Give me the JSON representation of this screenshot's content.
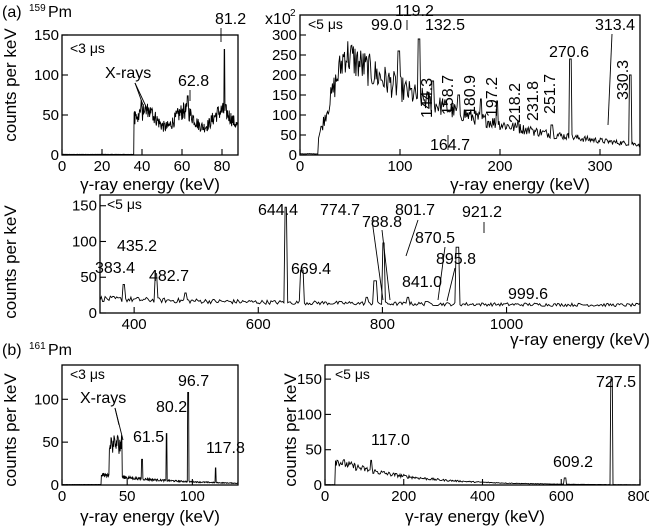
{
  "figure": {
    "label_a": "(a)",
    "nucleus_a_mass": "159",
    "nucleus_a_symbol": "Pm",
    "label_b": "(b)",
    "nucleus_b_mass": "161",
    "nucleus_b_symbol": "Pm"
  },
  "chart_data": [
    {
      "id": "a1",
      "type": "line",
      "gate": "<3 μs",
      "xlabel": "γ-ray energy (keV)",
      "ylabel": "counts per keV",
      "xlim": [
        0,
        88
      ],
      "ylim": [
        0,
        150
      ],
      "xticks": [
        0,
        20,
        40,
        60,
        80
      ],
      "yticks": [
        0,
        50,
        100,
        150
      ],
      "peaks": [
        {
          "label": "X-rays",
          "x": 40,
          "y": 55
        },
        {
          "label": "62.8",
          "x": 62.8,
          "y": 74
        },
        {
          "label": "81.2",
          "x": 81.2,
          "y": 132
        }
      ]
    },
    {
      "id": "a2",
      "type": "line",
      "gate": "<5 μs",
      "xlabel": "γ-ray energy (keV)",
      "ylabel": "",
      "scale_note": "x10",
      "scale_note_exp": "2",
      "xlim": [
        0,
        340
      ],
      "ylim": [
        0,
        350
      ],
      "xticks": [
        0,
        100,
        200,
        300
      ],
      "yticks": [
        0,
        50,
        100,
        150,
        200,
        250,
        300
      ],
      "peaks": [
        {
          "label": "99.0",
          "x": 99,
          "y": 260
        },
        {
          "label": "119.2",
          "x": 119.2,
          "y": 290
        },
        {
          "label": "132.5",
          "x": 132.5,
          "y": 185
        },
        {
          "label": "144.3",
          "x": 144.3,
          "y": 120
        },
        {
          "label": "158.7",
          "x": 158.7,
          "y": 150
        },
        {
          "label": "164.7",
          "x": 164.7,
          "y": 60
        },
        {
          "label": "180.9",
          "x": 180.9,
          "y": 140
        },
        {
          "label": "197.2",
          "x": 197.2,
          "y": 135
        },
        {
          "label": "218.2",
          "x": 218.2,
          "y": 85
        },
        {
          "label": "231.8",
          "x": 231.8,
          "y": 65
        },
        {
          "label": "251.7",
          "x": 251.7,
          "y": 75
        },
        {
          "label": "270.6",
          "x": 270.6,
          "y": 240
        },
        {
          "label": "313.4",
          "x": 313.4,
          "y": 25
        },
        {
          "label": "330.3",
          "x": 330.3,
          "y": 200
        }
      ]
    },
    {
      "id": "a3",
      "type": "line",
      "gate": "<5 μs",
      "xlabel": "γ-ray energy (keV)",
      "ylabel": "counts per keV",
      "xlim": [
        345,
        1215
      ],
      "ylim": [
        0,
        165
      ],
      "xticks": [
        400,
        600,
        800,
        1000
      ],
      "yticks": [
        0,
        50,
        100,
        150
      ],
      "peaks": [
        {
          "label": "383.4",
          "x": 383.4,
          "y": 40
        },
        {
          "label": "435.2",
          "x": 435.2,
          "y": 55
        },
        {
          "label": "482.7",
          "x": 482.7,
          "y": 28
        },
        {
          "label": "644.4",
          "x": 644.4,
          "y": 148
        },
        {
          "label": "669.4",
          "x": 669.4,
          "y": 60
        },
        {
          "label": "774.7",
          "x": 774.7,
          "y": 22
        },
        {
          "label": "788.8",
          "x": 788.8,
          "y": 45
        },
        {
          "label": "801.7",
          "x": 801.7,
          "y": 98
        },
        {
          "label": "841.0",
          "x": 841.0,
          "y": 22
        },
        {
          "label": "870.5",
          "x": 870.5,
          "y": 16
        },
        {
          "label": "895.8",
          "x": 895.8,
          "y": 10
        },
        {
          "label": "921.2",
          "x": 921.2,
          "y": 92
        },
        {
          "label": "999.6",
          "x": 999.6,
          "y": 8
        }
      ]
    },
    {
      "id": "b1",
      "type": "line",
      "gate": "<3 μs",
      "xlabel": "γ-ray energy (keV)",
      "ylabel": "counts per keV",
      "xlim": [
        0,
        135
      ],
      "ylim": [
        0,
        140
      ],
      "xticks": [
        0,
        50,
        100
      ],
      "yticks": [
        0,
        50,
        100
      ],
      "peaks": [
        {
          "label": "X-rays",
          "x": 40,
          "y": 60
        },
        {
          "label": "61.5",
          "x": 61.5,
          "y": 30
        },
        {
          "label": "80.2",
          "x": 80.2,
          "y": 60
        },
        {
          "label": "96.7",
          "x": 96.7,
          "y": 108
        },
        {
          "label": "117.8",
          "x": 117.8,
          "y": 20
        }
      ]
    },
    {
      "id": "b2",
      "type": "line",
      "gate": "<5 μs",
      "xlabel": "γ-ray energy (keV)",
      "ylabel": "counts per keV",
      "xlim": [
        0,
        800
      ],
      "ylim": [
        0,
        170
      ],
      "xticks": [
        0,
        200,
        400,
        600,
        800
      ],
      "yticks": [
        0,
        50,
        100,
        150
      ],
      "peaks": [
        {
          "label": "117.0",
          "x": 117.0,
          "y": 35
        },
        {
          "label": "609.2",
          "x": 609.2,
          "y": 10
        },
        {
          "label": "727.5",
          "x": 727.5,
          "y": 150
        }
      ]
    }
  ]
}
